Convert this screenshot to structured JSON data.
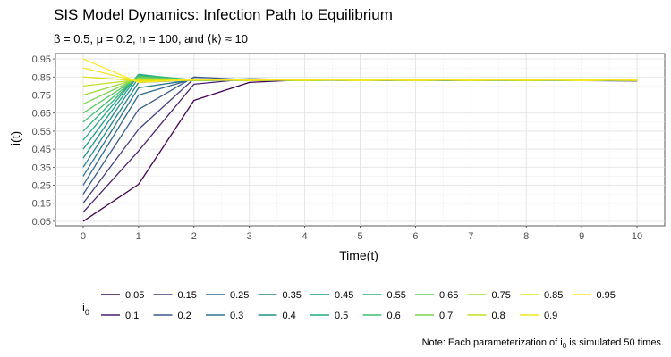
{
  "chart_data": {
    "type": "line",
    "title": "SIS Model Dynamics: Infection Path to Equilibrium",
    "subtitle": {
      "beta": "β = 0.5, ",
      "mu": "μ = 0.2, ",
      "n": "n = 100,  and ",
      "k_open": "⟨",
      "k": "k",
      "k_close": "⟩",
      "k_value": " ≈ 10"
    },
    "xlabel": "Time(t)",
    "ylabel": "i(t)",
    "x": [
      0,
      1,
      2,
      3,
      4,
      5,
      6,
      7,
      8,
      9,
      10
    ],
    "xlim": [
      -0.5,
      10.5
    ],
    "ylim": [
      0.025,
      0.98
    ],
    "x_ticks": [
      "0",
      "1",
      "2",
      "3",
      "4",
      "5",
      "6",
      "7",
      "8",
      "9",
      "10"
    ],
    "y_ticks": [
      "0.05",
      "0.15",
      "0.25",
      "0.35",
      "0.45",
      "0.55",
      "0.65",
      "0.75",
      "0.85",
      "0.95"
    ],
    "grid": true,
    "legend": {
      "title": "i",
      "title_sub": "0",
      "position": "bottom"
    },
    "caption": {
      "text_before": "Note: Each parameterization of i",
      "text_sub": "0",
      "text_after": " is simulated 50 times."
    },
    "series": [
      {
        "name": "0.05",
        "color": "#440154",
        "values": [
          0.05,
          0.255,
          0.72,
          0.82,
          0.835,
          0.83,
          0.832,
          0.83,
          0.835,
          0.83,
          0.828
        ]
      },
      {
        "name": "0.1",
        "color": "#482173",
        "values": [
          0.1,
          0.44,
          0.81,
          0.84,
          0.835,
          0.832,
          0.835,
          0.833,
          0.832,
          0.835,
          0.83
        ]
      },
      {
        "name": "0.15",
        "color": "#433E85",
        "values": [
          0.15,
          0.56,
          0.84,
          0.83,
          0.835,
          0.83,
          0.835,
          0.832,
          0.835,
          0.83,
          0.832
        ]
      },
      {
        "name": "0.2",
        "color": "#3A5A8C",
        "values": [
          0.2,
          0.67,
          0.85,
          0.835,
          0.832,
          0.835,
          0.83,
          0.835,
          0.832,
          0.83,
          0.835
        ]
      },
      {
        "name": "0.25",
        "color": "#31688E",
        "values": [
          0.25,
          0.75,
          0.84,
          0.835,
          0.835,
          0.832,
          0.835,
          0.83,
          0.835,
          0.832,
          0.83
        ]
      },
      {
        "name": "0.3",
        "color": "#2B758E",
        "values": [
          0.3,
          0.79,
          0.835,
          0.83,
          0.832,
          0.835,
          0.832,
          0.835,
          0.83,
          0.835,
          0.832
        ]
      },
      {
        "name": "0.35",
        "color": "#26828E",
        "values": [
          0.35,
          0.82,
          0.832,
          0.84,
          0.83,
          0.835,
          0.832,
          0.83,
          0.835,
          0.832,
          0.835
        ]
      },
      {
        "name": "0.4",
        "color": "#21908C",
        "values": [
          0.4,
          0.845,
          0.83,
          0.835,
          0.832,
          0.83,
          0.835,
          0.832,
          0.83,
          0.835,
          0.83
        ]
      },
      {
        "name": "0.45",
        "color": "#1F9A8A",
        "values": [
          0.45,
          0.86,
          0.832,
          0.83,
          0.835,
          0.832,
          0.83,
          0.835,
          0.832,
          0.83,
          0.835
        ]
      },
      {
        "name": "0.5",
        "color": "#22A884",
        "values": [
          0.5,
          0.865,
          0.83,
          0.835,
          0.83,
          0.835,
          0.832,
          0.83,
          0.835,
          0.832,
          0.83
        ]
      },
      {
        "name": "0.55",
        "color": "#2FB47C",
        "values": [
          0.55,
          0.86,
          0.835,
          0.832,
          0.835,
          0.83,
          0.835,
          0.832,
          0.83,
          0.835,
          0.832
        ]
      },
      {
        "name": "0.6",
        "color": "#44BF70",
        "values": [
          0.6,
          0.855,
          0.832,
          0.835,
          0.83,
          0.835,
          0.83,
          0.835,
          0.832,
          0.83,
          0.835
        ]
      },
      {
        "name": "0.65",
        "color": "#5EC962",
        "values": [
          0.65,
          0.85,
          0.835,
          0.83,
          0.835,
          0.832,
          0.835,
          0.83,
          0.835,
          0.832,
          0.83
        ]
      },
      {
        "name": "0.7",
        "color": "#7AD151",
        "values": [
          0.7,
          0.845,
          0.83,
          0.835,
          0.832,
          0.835,
          0.83,
          0.835,
          0.83,
          0.835,
          0.832
        ]
      },
      {
        "name": "0.75",
        "color": "#9BD93C",
        "values": [
          0.75,
          0.84,
          0.835,
          0.832,
          0.835,
          0.83,
          0.835,
          0.832,
          0.835,
          0.83,
          0.835
        ]
      },
      {
        "name": "0.8",
        "color": "#BDDF26",
        "values": [
          0.8,
          0.835,
          0.832,
          0.835,
          0.83,
          0.835,
          0.832,
          0.835,
          0.83,
          0.835,
          0.83
        ]
      },
      {
        "name": "0.85",
        "color": "#DFE318",
        "values": [
          0.85,
          0.83,
          0.835,
          0.83,
          0.835,
          0.832,
          0.835,
          0.83,
          0.835,
          0.832,
          0.835
        ]
      },
      {
        "name": "0.9",
        "color": "#F1E51D",
        "values": [
          0.9,
          0.825,
          0.832,
          0.835,
          0.832,
          0.835,
          0.83,
          0.835,
          0.832,
          0.835,
          0.832
        ]
      },
      {
        "name": "0.95",
        "color": "#FDE725",
        "values": [
          0.95,
          0.82,
          0.835,
          0.832,
          0.835,
          0.83,
          0.835,
          0.832,
          0.835,
          0.83,
          0.835
        ]
      }
    ]
  }
}
